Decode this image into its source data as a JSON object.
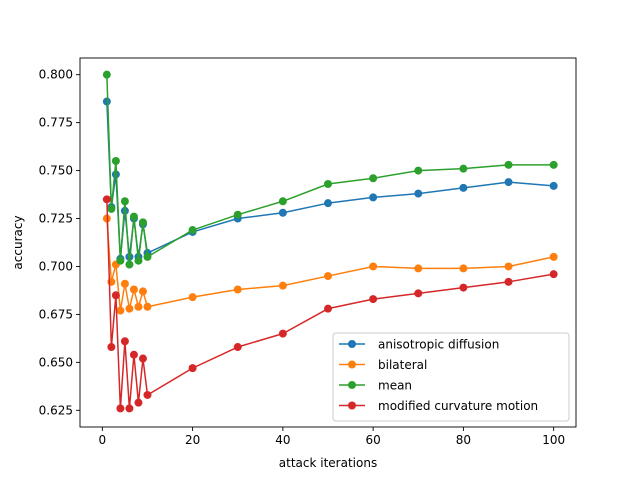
{
  "chart_data": {
    "type": "line",
    "title": "",
    "xlabel": "attack iterations",
    "ylabel": "accuracy",
    "xlim": [
      -4.95,
      104.95
    ],
    "ylim": [
      0.6163,
      0.8087
    ],
    "xticks": [
      0,
      20,
      40,
      60,
      80,
      100
    ],
    "yticks": [
      0.625,
      0.65,
      0.675,
      0.7,
      0.725,
      0.75,
      0.775,
      0.8
    ],
    "xtick_labels": [
      "0",
      "20",
      "40",
      "60",
      "80",
      "100"
    ],
    "ytick_labels": [
      "0.625",
      "0.650",
      "0.675",
      "0.700",
      "0.725",
      "0.750",
      "0.775",
      "0.800"
    ],
    "grid": false,
    "legend_position": "lower-right",
    "x": [
      1,
      2,
      3,
      4,
      5,
      6,
      7,
      8,
      9,
      10,
      20,
      30,
      40,
      50,
      60,
      70,
      80,
      90,
      100
    ],
    "series": [
      {
        "name": "anisotropic diffusion",
        "color": "#1f77b4",
        "values": [
          0.786,
          0.731,
          0.748,
          0.704,
          0.729,
          0.705,
          0.725,
          0.705,
          0.722,
          0.707,
          0.718,
          0.725,
          0.728,
          0.733,
          0.736,
          0.738,
          0.741,
          0.744,
          0.742
        ]
      },
      {
        "name": "bilateral",
        "color": "#ff7f0e",
        "values": [
          0.725,
          0.692,
          0.701,
          0.677,
          0.691,
          0.678,
          0.688,
          0.679,
          0.687,
          0.679,
          0.684,
          0.688,
          0.69,
          0.695,
          0.7,
          0.699,
          0.699,
          0.7,
          0.705
        ]
      },
      {
        "name": "mean",
        "color": "#2ca02c",
        "values": [
          0.8,
          0.73,
          0.755,
          0.703,
          0.734,
          0.701,
          0.726,
          0.703,
          0.723,
          0.705,
          0.719,
          0.727,
          0.734,
          0.743,
          0.746,
          0.75,
          0.751,
          0.753,
          0.753
        ]
      },
      {
        "name": "modified curvature motion",
        "color": "#d62728",
        "values": [
          0.735,
          0.658,
          0.685,
          0.626,
          0.661,
          0.626,
          0.654,
          0.629,
          0.652,
          0.633,
          0.647,
          0.658,
          0.665,
          0.678,
          0.683,
          0.686,
          0.689,
          0.692,
          0.696
        ]
      }
    ]
  }
}
